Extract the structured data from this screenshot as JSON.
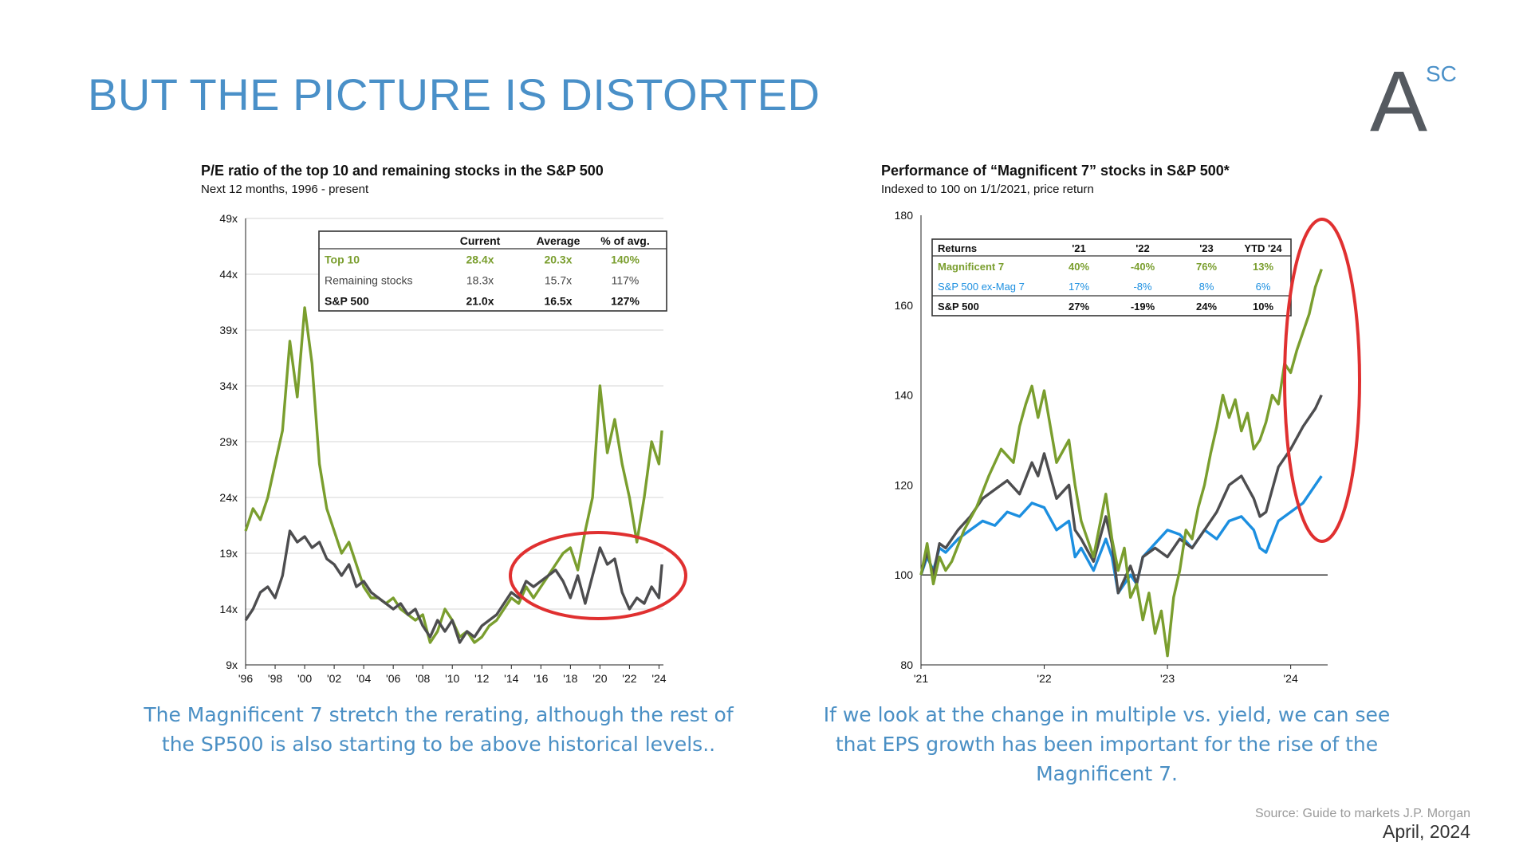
{
  "slide": {
    "title": "BUT THE PICTURE IS DISTORTED",
    "logo_text": "A",
    "logo_superscript": "SC",
    "caption_left": "The Magnificent 7 stretch the rerating, although the rest of the SP500 is also starting to be above historical levels..",
    "caption_right": "If we look at the change in multiple vs. yield, we can see that EPS growth has been important for the rise of the Magnificent 7.",
    "source": "Source: Guide to markets J.P. Morgan",
    "date": "April, 2024"
  },
  "colors": {
    "title": "#4a90c8",
    "green": "#7a9e2e",
    "dark": "#4d4d4f",
    "blue": "#1c8fe0",
    "highlight": "#e03030"
  },
  "chart_data": [
    {
      "type": "line",
      "title": "P/E ratio of the top 10 and remaining stocks in the S&P 500",
      "subtitle": "Next 12 months, 1996 - present",
      "xlim": [
        1996,
        2024.3
      ],
      "ylim": [
        9,
        49
      ],
      "x_ticks": [
        1996,
        1998,
        2000,
        2002,
        2004,
        2006,
        2008,
        2010,
        2012,
        2014,
        2016,
        2018,
        2020,
        2022,
        2024
      ],
      "x_tick_labels": [
        "'96",
        "'98",
        "'00",
        "'02",
        "'04",
        "'06",
        "'08",
        "'10",
        "'12",
        "'14",
        "'16",
        "'18",
        "'20",
        "'22",
        "'24"
      ],
      "y_ticks": [
        9,
        14,
        19,
        24,
        29,
        34,
        39,
        44,
        49
      ],
      "y_tick_labels": [
        "9x",
        "14x",
        "19x",
        "24x",
        "29x",
        "34x",
        "39x",
        "44x",
        "49x"
      ],
      "grid": true,
      "series": [
        {
          "name": "Top 10",
          "color": "#7a9e2e",
          "x": [
            1996.0,
            1996.5,
            1997.0,
            1997.5,
            1998.0,
            1998.5,
            1999.0,
            1999.5,
            2000.0,
            2000.5,
            2001.0,
            2001.5,
            2002.0,
            2002.5,
            2003.0,
            2003.5,
            2004.0,
            2004.5,
            2005.0,
            2005.5,
            2006.0,
            2006.5,
            2007.0,
            2007.5,
            2008.0,
            2008.5,
            2009.0,
            2009.5,
            2010.0,
            2010.5,
            2011.0,
            2011.5,
            2012.0,
            2012.5,
            2013.0,
            2013.5,
            2014.0,
            2014.5,
            2015.0,
            2015.5,
            2016.0,
            2016.5,
            2017.0,
            2017.5,
            2018.0,
            2018.5,
            2019.0,
            2019.5,
            2020.0,
            2020.5,
            2021.0,
            2021.5,
            2022.0,
            2022.5,
            2023.0,
            2023.5,
            2024.0,
            2024.2
          ],
          "y": [
            21,
            23,
            22,
            24,
            27,
            30,
            38,
            33,
            41,
            36,
            27,
            23,
            21,
            19,
            20,
            18,
            16,
            15,
            15,
            14.5,
            15,
            14,
            13.5,
            13,
            13.5,
            11,
            12,
            14,
            13,
            11.5,
            12,
            11,
            11.5,
            12.5,
            13,
            14,
            15,
            14.5,
            16,
            15,
            16,
            17,
            18,
            19,
            19.5,
            17.5,
            21,
            24,
            34,
            28,
            31,
            27,
            24,
            20,
            24,
            29,
            27,
            30
          ]
        },
        {
          "name": "Remaining stocks",
          "color": "#4d4d4f",
          "x": [
            1996.0,
            1996.5,
            1997.0,
            1997.5,
            1998.0,
            1998.5,
            1999.0,
            1999.5,
            2000.0,
            2000.5,
            2001.0,
            2001.5,
            2002.0,
            2002.5,
            2003.0,
            2003.5,
            2004.0,
            2004.5,
            2005.0,
            2005.5,
            2006.0,
            2006.5,
            2007.0,
            2007.5,
            2008.0,
            2008.5,
            2009.0,
            2009.5,
            2010.0,
            2010.5,
            2011.0,
            2011.5,
            2012.0,
            2012.5,
            2013.0,
            2013.5,
            2014.0,
            2014.5,
            2015.0,
            2015.5,
            2016.0,
            2016.5,
            2017.0,
            2017.5,
            2018.0,
            2018.5,
            2019.0,
            2019.5,
            2020.0,
            2020.5,
            2021.0,
            2021.5,
            2022.0,
            2022.5,
            2023.0,
            2023.5,
            2024.0,
            2024.2
          ],
          "y": [
            13,
            14,
            15.5,
            16,
            15,
            17,
            21,
            20,
            20.5,
            19.5,
            20,
            18.5,
            18,
            17,
            18,
            16,
            16.5,
            15.5,
            15,
            14.5,
            14,
            14.5,
            13.5,
            14,
            12.5,
            11.5,
            13,
            12,
            13,
            11,
            12,
            11.5,
            12.5,
            13,
            13.5,
            14.5,
            15.5,
            15,
            16.5,
            16,
            16.5,
            17,
            17.5,
            16.5,
            15,
            17,
            14.5,
            17,
            19.5,
            18,
            18.5,
            15.5,
            14,
            15,
            14.5,
            16,
            15,
            18
          ]
        }
      ],
      "table": {
        "headers": [
          "",
          "Current",
          "Average",
          "% of avg."
        ],
        "rows": [
          [
            "Top 10",
            "28.4x",
            "20.3x",
            "140%"
          ],
          [
            "Remaining stocks",
            "18.3x",
            "15.7x",
            "117%"
          ],
          [
            "S&P 500",
            "21.0x",
            "16.5x",
            "127%"
          ]
        ]
      }
    },
    {
      "type": "line",
      "title": "Performance of “Magnificent 7” stocks in S&P 500*",
      "subtitle": "Indexed to 100 on 1/1/2021, price return",
      "xlim": [
        2021.0,
        2024.3
      ],
      "ylim": [
        80,
        180
      ],
      "x_ticks": [
        2021,
        2022,
        2023,
        2024
      ],
      "x_tick_labels": [
        "'21",
        "'22",
        "'23",
        "'24"
      ],
      "y_ticks": [
        80,
        100,
        120,
        140,
        160,
        180
      ],
      "y_tick_labels": [
        "80",
        "100",
        "120",
        "140",
        "160",
        "180"
      ],
      "grid": false,
      "series": [
        {
          "name": "Magnificent 7",
          "color": "#7a9e2e",
          "x": [
            2021.0,
            2021.05,
            2021.1,
            2021.15,
            2021.2,
            2021.25,
            2021.35,
            2021.45,
            2021.55,
            2021.65,
            2021.75,
            2021.8,
            2021.85,
            2021.9,
            2021.95,
            2022.0,
            2022.1,
            2022.2,
            2022.25,
            2022.3,
            2022.4,
            2022.5,
            2022.55,
            2022.6,
            2022.65,
            2022.7,
            2022.75,
            2022.8,
            2022.85,
            2022.9,
            2022.95,
            2023.0,
            2023.05,
            2023.1,
            2023.15,
            2023.2,
            2023.25,
            2023.3,
            2023.35,
            2023.4,
            2023.45,
            2023.5,
            2023.55,
            2023.6,
            2023.65,
            2023.7,
            2023.75,
            2023.8,
            2023.85,
            2023.9,
            2023.95,
            2024.0,
            2024.05,
            2024.1,
            2024.15,
            2024.2,
            2024.25
          ],
          "y": [
            100,
            107,
            98,
            104,
            101,
            103,
            110,
            115,
            122,
            128,
            125,
            133,
            138,
            142,
            135,
            141,
            125,
            130,
            120,
            112,
            104,
            118,
            108,
            101,
            106,
            95,
            98,
            90,
            96,
            87,
            92,
            82,
            95,
            101,
            110,
            108,
            115,
            120,
            127,
            133,
            140,
            135,
            139,
            132,
            136,
            128,
            130,
            134,
            140,
            138,
            147,
            145,
            150,
            154,
            158,
            164,
            168
          ]
        },
        {
          "name": "S&P 500 ex-Mag 7",
          "color": "#1c8fe0",
          "x": [
            2021.0,
            2021.05,
            2021.1,
            2021.15,
            2021.2,
            2021.3,
            2021.4,
            2021.5,
            2021.6,
            2021.7,
            2021.8,
            2021.9,
            2022.0,
            2022.1,
            2022.2,
            2022.25,
            2022.3,
            2022.4,
            2022.5,
            2022.55,
            2022.6,
            2022.7,
            2022.75,
            2022.8,
            2022.9,
            2023.0,
            2023.1,
            2023.2,
            2023.3,
            2023.4,
            2023.5,
            2023.6,
            2023.7,
            2023.75,
            2023.8,
            2023.9,
            2024.0,
            2024.1,
            2024.2,
            2024.25
          ],
          "y": [
            100,
            104,
            101,
            106,
            105,
            108,
            110,
            112,
            111,
            114,
            113,
            116,
            115,
            110,
            112,
            104,
            106,
            101,
            108,
            104,
            96,
            100,
            98,
            104,
            107,
            110,
            109,
            106,
            110,
            108,
            112,
            113,
            110,
            106,
            105,
            112,
            114,
            116,
            120,
            122
          ]
        },
        {
          "name": "S&P 500",
          "color": "#4d4d4f",
          "x": [
            2021.0,
            2021.05,
            2021.1,
            2021.15,
            2021.2,
            2021.3,
            2021.4,
            2021.5,
            2021.6,
            2021.7,
            2021.8,
            2021.9,
            2021.95,
            2022.0,
            2022.1,
            2022.2,
            2022.25,
            2022.3,
            2022.4,
            2022.5,
            2022.55,
            2022.6,
            2022.7,
            2022.75,
            2022.8,
            2022.9,
            2023.0,
            2023.1,
            2023.2,
            2023.3,
            2023.4,
            2023.5,
            2023.6,
            2023.7,
            2023.75,
            2023.8,
            2023.9,
            2024.0,
            2024.1,
            2024.2,
            2024.25
          ],
          "y": [
            100,
            105,
            100,
            107,
            106,
            110,
            113,
            117,
            119,
            121,
            118,
            125,
            122,
            127,
            117,
            120,
            110,
            108,
            103,
            113,
            107,
            96,
            102,
            98,
            104,
            106,
            104,
            108,
            106,
            110,
            114,
            120,
            122,
            117,
            113,
            114,
            124,
            128,
            133,
            137,
            140
          ]
        }
      ],
      "table": {
        "headers": [
          "Returns",
          "'21",
          "'22",
          "'23",
          "YTD '24"
        ],
        "rows": [
          [
            "Magnificent 7",
            "40%",
            "-40%",
            "76%",
            "13%"
          ],
          [
            "S&P 500 ex-Mag 7",
            "17%",
            "-8%",
            "8%",
            "6%"
          ],
          [
            "S&P 500",
            "27%",
            "-19%",
            "24%",
            "10%"
          ]
        ]
      }
    }
  ]
}
